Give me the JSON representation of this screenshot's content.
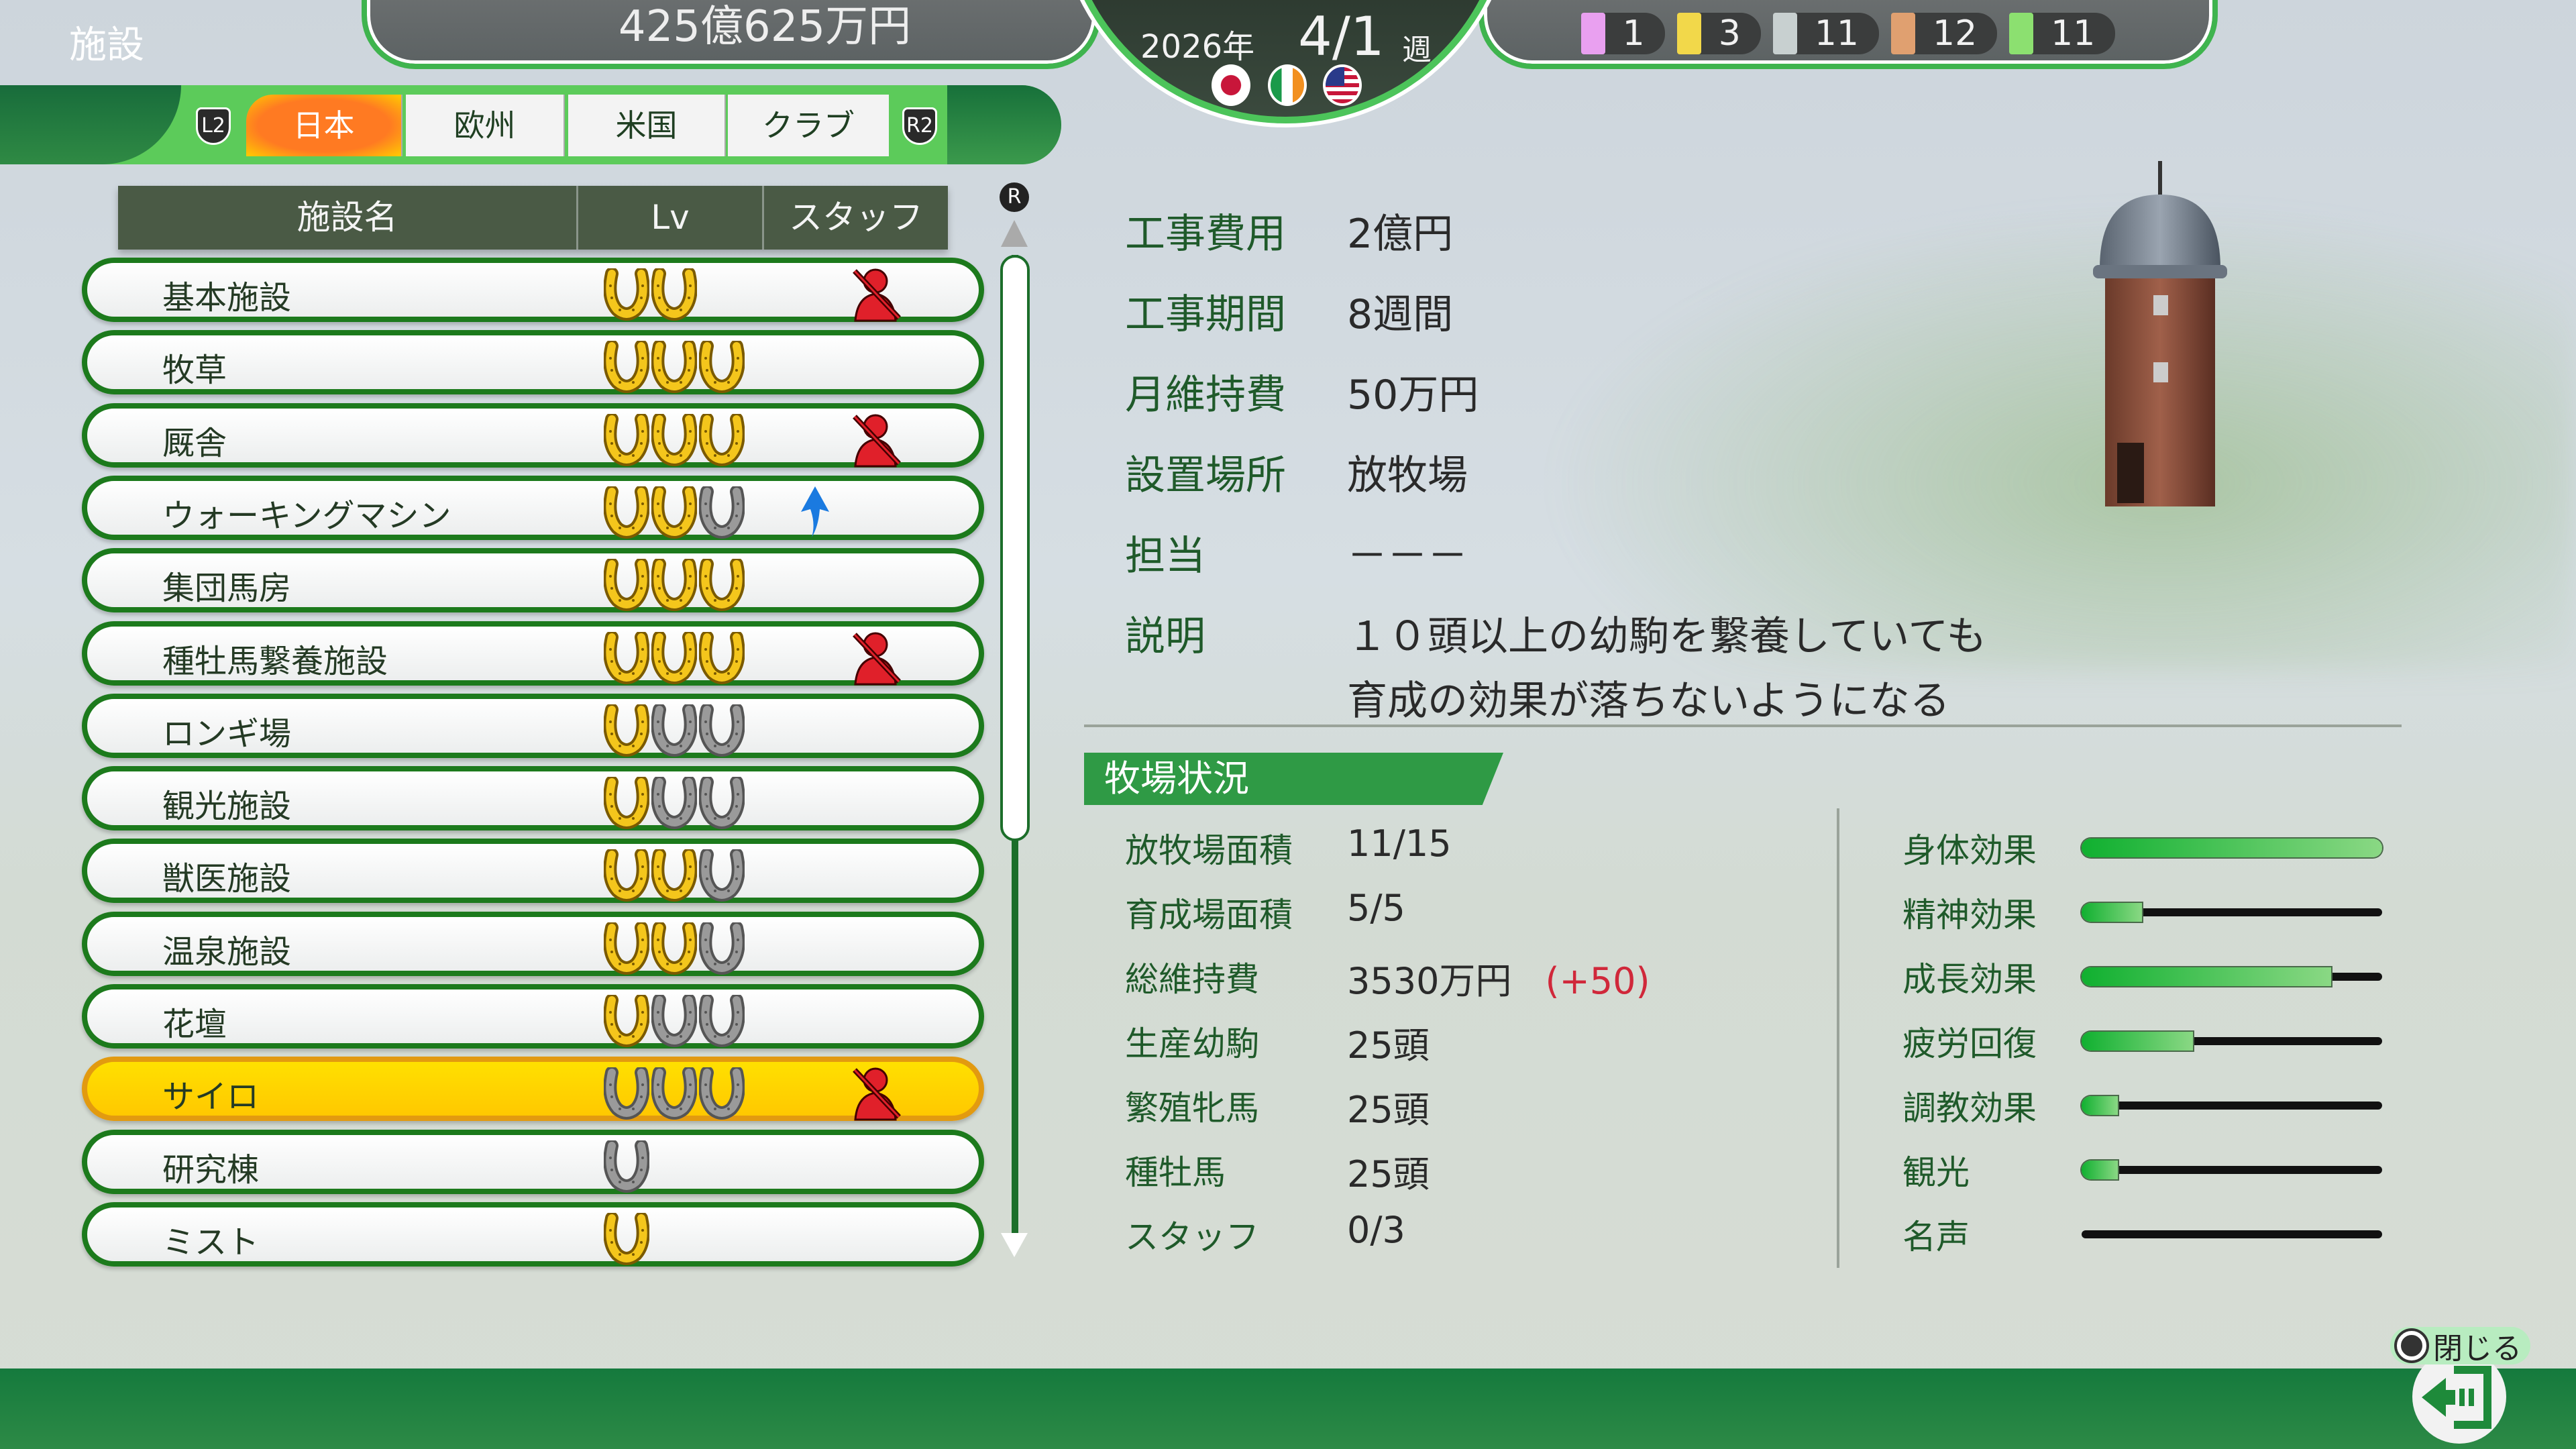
{
  "header": {
    "money": "425億625万円",
    "year": "2026年",
    "week": "4/1",
    "week_unit": "週",
    "flags": [
      {
        "name": "japan-flag"
      },
      {
        "name": "ireland-flag"
      },
      {
        "name": "usa-flag"
      }
    ],
    "counts": [
      {
        "icon": "rainbow-ticket-icon",
        "color": "#e9a0f0",
        "value": "1"
      },
      {
        "icon": "gold-ticket-icon",
        "color": "#f2d84a",
        "value": "3"
      },
      {
        "icon": "silver-ticket-icon",
        "color": "#c8d0d0",
        "value": "11"
      },
      {
        "icon": "bronze-ticket-icon",
        "color": "#e0a070",
        "value": "12"
      },
      {
        "icon": "green-ticket-icon",
        "color": "#8ce070",
        "value": "11"
      }
    ]
  },
  "tabs": {
    "title": "施設",
    "left_button": "L2",
    "right_button": "R2",
    "items": [
      {
        "label": "日本",
        "active": true
      },
      {
        "label": "欧州"
      },
      {
        "label": "米国"
      },
      {
        "label": "クラブ"
      }
    ]
  },
  "table": {
    "columns": [
      "施設名",
      "Lv",
      "スタッフ"
    ],
    "scroll_button": "R",
    "rows": [
      {
        "name": "基本施設",
        "level": 2,
        "max": 2,
        "staff": "no-staff"
      },
      {
        "name": "牧草",
        "level": 3,
        "max": 3,
        "staff": ""
      },
      {
        "name": "厩舎",
        "level": 3,
        "max": 3,
        "staff": "no-staff"
      },
      {
        "name": "ウォーキングマシン",
        "level": 2,
        "max": 3,
        "staff": "upgrade"
      },
      {
        "name": "集団馬房",
        "level": 3,
        "max": 3,
        "staff": ""
      },
      {
        "name": "種牡馬繋養施設",
        "level": 3,
        "max": 3,
        "staff": "no-staff"
      },
      {
        "name": "ロンギ場",
        "level": 1,
        "max": 3,
        "staff": ""
      },
      {
        "name": "観光施設",
        "level": 1,
        "max": 3,
        "staff": ""
      },
      {
        "name": "獣医施設",
        "level": 2,
        "max": 3,
        "staff": ""
      },
      {
        "name": "温泉施設",
        "level": 2,
        "max": 3,
        "staff": ""
      },
      {
        "name": "花壇",
        "level": 1,
        "max": 3,
        "staff": ""
      },
      {
        "name": "サイロ",
        "level": 0,
        "max": 3,
        "staff": "no-staff",
        "selected": true
      },
      {
        "name": "研究棟",
        "level": 0,
        "max": 1,
        "staff": ""
      },
      {
        "name": "ミスト",
        "level": 1,
        "max": 1,
        "staff": ""
      }
    ]
  },
  "detail": {
    "items": [
      {
        "label": "工事費用",
        "value": "2億円"
      },
      {
        "label": "工事期間",
        "value": "8週間"
      },
      {
        "label": "月維持費",
        "value": "50万円"
      },
      {
        "label": "設置場所",
        "value": "放牧場"
      },
      {
        "label": "担当",
        "value": "－－－"
      },
      {
        "label": "説明",
        "value": "１０頭以上の幼駒を繋養していても",
        "value2": "育成の効果が落ちないようになる"
      }
    ]
  },
  "ranch": {
    "title": "牧場状況",
    "stats": [
      {
        "label": "放牧場面積",
        "value": "11/15"
      },
      {
        "label": "育成場面積",
        "value": "5/5"
      },
      {
        "label": "総維持費",
        "value": "3530万円",
        "delta": "(+50)"
      },
      {
        "label": "生産幼駒",
        "value": "25頭"
      },
      {
        "label": "繁殖牝馬",
        "value": "25頭"
      },
      {
        "label": "種牡馬",
        "value": "25頭"
      },
      {
        "label": "スタッフ",
        "value": "0/3"
      }
    ],
    "effects": [
      {
        "label": "身体効果",
        "percent": 100
      },
      {
        "label": "精神効果",
        "percent": 20
      },
      {
        "label": "成長効果",
        "percent": 83
      },
      {
        "label": "疲労回復",
        "percent": 37
      },
      {
        "label": "調教効果",
        "percent": 12
      },
      {
        "label": "観光",
        "percent": 12
      },
      {
        "label": "名声",
        "percent": 0
      }
    ],
    "delta_color": "#d0283a"
  },
  "footer": {
    "close_label": "閉じる"
  }
}
